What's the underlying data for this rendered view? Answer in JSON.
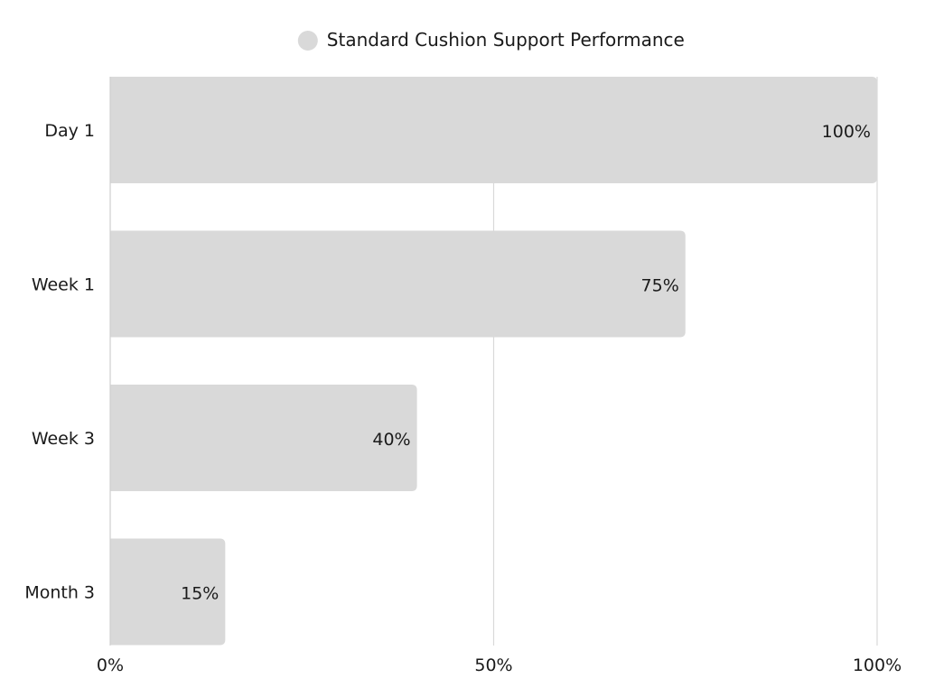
{
  "chart_data": {
    "type": "bar",
    "orientation": "horizontal",
    "categories": [
      "Day 1",
      "Week 1",
      "Week 3",
      "Month 3"
    ],
    "series": [
      {
        "name": "Standard Cushion Support Performance",
        "values": [
          100,
          75,
          40,
          15
        ],
        "data_labels": [
          "100%",
          "75%",
          "40%",
          "15%"
        ],
        "color": "#d9d9d9"
      }
    ],
    "x_ticks": [
      {
        "value": 0,
        "label": "0%"
      },
      {
        "value": 50,
        "label": "50%"
      },
      {
        "value": 100,
        "label": "100%"
      }
    ],
    "xlim": [
      0,
      100
    ],
    "grid": true,
    "legend_position": "top-center",
    "title": "",
    "xlabel": "",
    "ylabel": ""
  },
  "colors": {
    "bar": "#d9d9d9",
    "gridline": "#d9d9d9",
    "axis": "#cfcfcf",
    "text": "#1a1a1a"
  }
}
